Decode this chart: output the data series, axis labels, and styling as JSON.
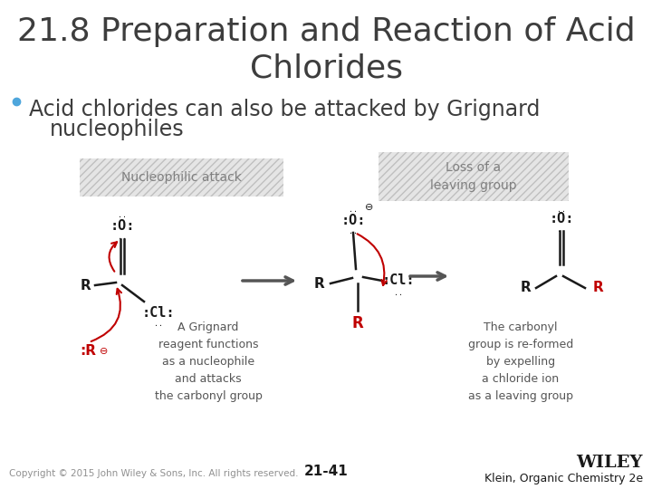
{
  "background_color": "#ffffff",
  "title_line1": "21.8 Preparation and Reaction of Acid",
  "title_line2": "Chlorides",
  "title_color": "#3d3d3d",
  "title_fontsize": 26,
  "bullet_color": "#4ea6dc",
  "bullet_text_line1": "Acid chlorides can also be attacked by Grignard",
  "bullet_text_line2": "nucleophiles",
  "bullet_fontsize": 17,
  "bullet_text_color": "#3d3d3d",
  "label1": "Nucleophilic attack",
  "label2": "Loss of a\nleaving group",
  "label_color": "#808080",
  "label_fontsize": 10,
  "label_bg_color": "#d0d0d0",
  "footer_copyright": "Copyright © 2015 John Wiley & Sons, Inc. All rights reserved.",
  "footer_page": "21-41",
  "footer_wiley": "WILEY",
  "footer_klein": "Klein, Organic Chemistry 2e",
  "footer_color": "#909090",
  "footer_fontsize": 7.5,
  "arrow_color": "#555555",
  "red_color": "#c00000",
  "dark_color": "#1a1a1a",
  "gray_color": "#555555"
}
